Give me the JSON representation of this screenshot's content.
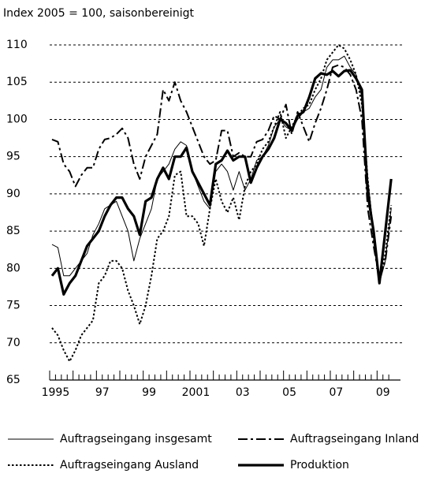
{
  "chart_data": {
    "type": "line",
    "subtitle": "Index 2005 = 100, saisonbereinigt",
    "categories": [
      null,
      "1995",
      null,
      null,
      null,
      null,
      null,
      null,
      null,
      "97",
      null,
      null,
      null,
      null,
      null,
      null,
      null,
      "99",
      null,
      null,
      null,
      null,
      null,
      null,
      null,
      "2001",
      null,
      null,
      null,
      null,
      null,
      null,
      null,
      "03",
      null,
      null,
      null,
      null,
      null,
      null,
      null,
      "05",
      null,
      null,
      null,
      null,
      null,
      null,
      null,
      "07",
      null,
      null,
      null,
      null,
      null,
      null,
      null,
      "09",
      null
    ],
    "ylim": [
      65,
      110
    ],
    "yticks": [
      65,
      70,
      75,
      80,
      85,
      90,
      95,
      100,
      105,
      110
    ],
    "grid": true,
    "series": [
      {
        "name": "Auftragseingang insgesamt",
        "color": "#000000",
        "width": 1,
        "dash": "solid",
        "values": [
          83.2,
          82.8,
          79,
          79,
          80,
          81,
          82,
          84.5,
          86,
          88,
          88.5,
          89,
          87,
          85,
          81,
          84,
          86,
          88,
          92,
          93,
          94,
          96,
          97,
          96.5,
          93,
          91,
          89,
          88,
          93,
          94,
          93,
          90.5,
          93,
          90.5,
          92,
          94.5,
          95,
          96.5,
          99,
          100,
          99,
          98.5,
          100,
          101,
          101.5,
          103,
          104,
          107,
          108,
          108,
          108.5,
          107,
          106,
          103,
          92,
          85,
          78,
          81,
          88
        ]
      },
      {
        "name": "Auftragseingang Inland",
        "color": "#000000",
        "width": 2,
        "dash": "dashdot",
        "values": [
          97.3,
          97,
          94,
          93,
          91,
          92.5,
          93.5,
          93.5,
          96,
          97.3,
          97.5,
          98,
          98.8,
          97.5,
          94,
          92,
          95,
          96.5,
          98,
          104,
          102.5,
          105,
          102.5,
          101,
          99,
          97,
          95,
          94,
          94.5,
          98.5,
          98.5,
          95,
          95.5,
          95,
          95,
          97,
          97.3,
          98.5,
          100.5,
          100,
          102,
          98,
          101,
          99,
          97,
          99.5,
          101.5,
          104,
          107,
          107.3,
          107,
          106,
          104,
          100,
          88,
          83,
          78.5,
          81,
          87
        ]
      },
      {
        "name": "Auftragseingang Ausland",
        "color": "#000000",
        "width": 2,
        "dash": "dotted",
        "values": [
          72,
          71,
          69,
          67.5,
          69,
          71,
          72,
          73,
          78,
          79,
          81,
          81,
          80,
          77,
          75,
          72.5,
          75,
          79,
          84,
          85,
          87,
          92.5,
          93,
          87,
          87,
          86,
          83,
          88,
          92,
          89,
          87.5,
          89.5,
          86.5,
          91,
          93,
          94,
          96,
          97,
          99,
          101,
          97.5,
          99,
          100.5,
          101.5,
          102,
          104,
          105.5,
          108,
          109,
          110,
          109.5,
          108,
          106,
          102,
          92,
          84,
          78,
          82,
          88.5
        ]
      },
      {
        "name": "Produktion",
        "color": "#000000",
        "width": 3.2,
        "dash": "solid",
        "values": [
          79,
          80,
          76.5,
          78,
          79,
          81,
          83,
          84,
          85,
          87,
          88.5,
          89.5,
          89.5,
          88,
          87,
          84.5,
          89,
          89.5,
          92,
          93.5,
          92,
          95,
          95,
          96.2,
          93,
          91.5,
          90,
          88.5,
          94,
          94.5,
          95.8,
          94.5,
          95,
          95,
          91.5,
          93.5,
          95,
          96,
          97.5,
          100,
          99.5,
          98.5,
          100.5,
          101,
          103,
          105.5,
          106.2,
          106,
          106.5,
          105.8,
          106.5,
          106.6,
          105.5,
          104,
          90,
          85,
          78,
          85,
          92
        ]
      }
    ]
  }
}
